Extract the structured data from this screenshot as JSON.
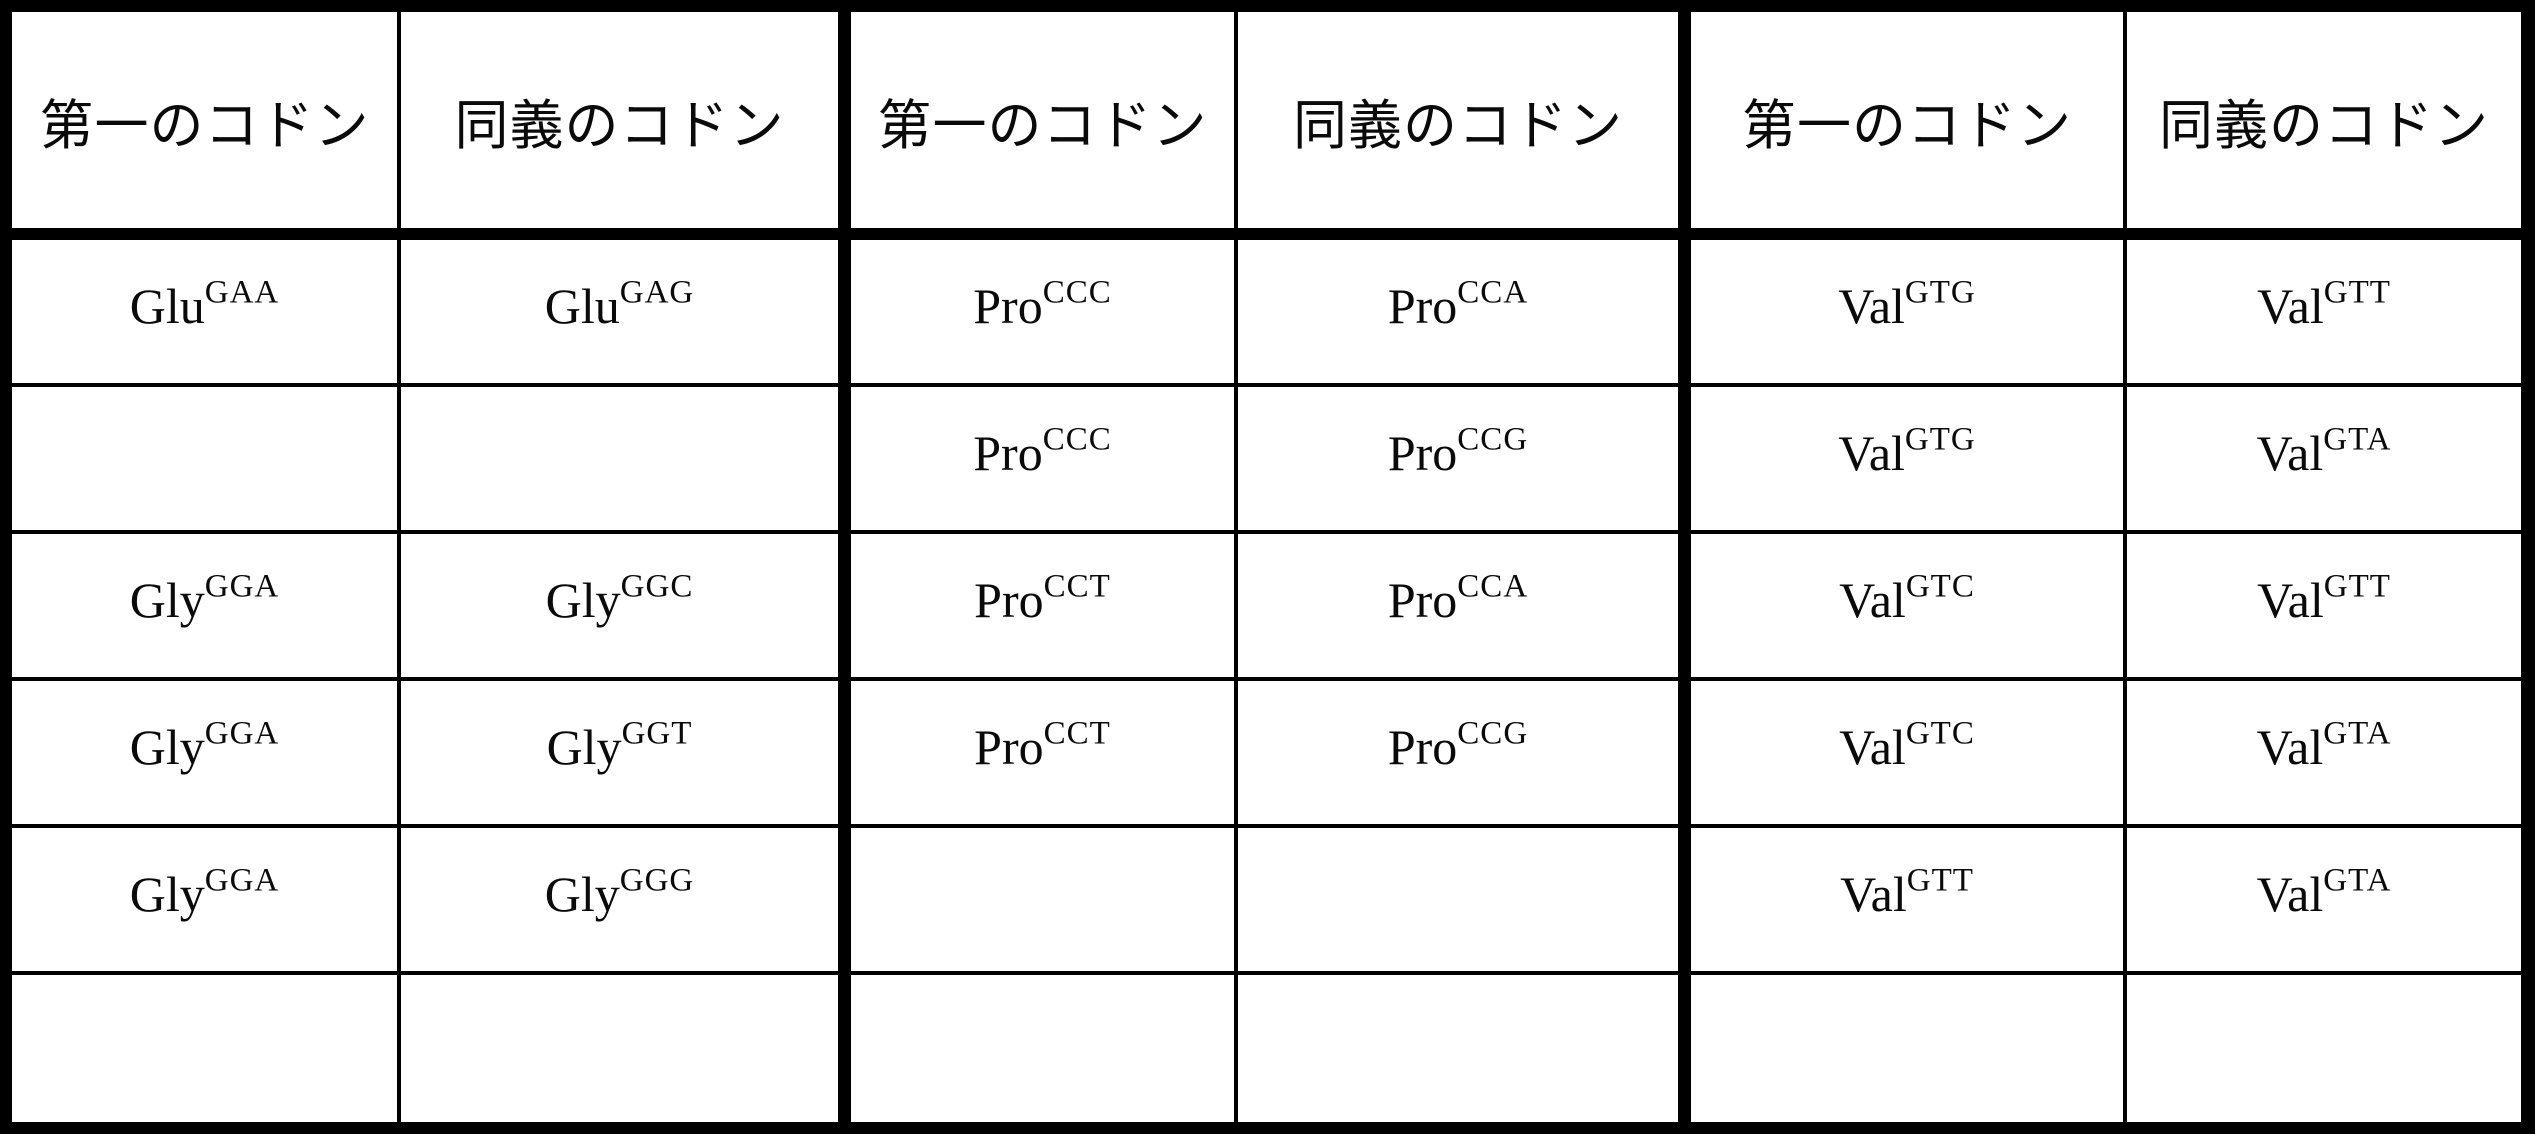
{
  "colors": {
    "ink": "#000000",
    "paper": "#ffffff"
  },
  "table": {
    "description": "synonymous codon substitution table",
    "header": [
      "第一のコドン",
      "同義のコドン",
      "第一のコドン",
      "同義のコドン",
      "第一のコドン",
      "同義のコドン"
    ],
    "rows": [
      [
        {
          "base": "Glu",
          "sup": "GAA"
        },
        {
          "base": "Glu",
          "sup": "GAG"
        },
        {
          "base": "Pro",
          "sup": "CCC"
        },
        {
          "base": "Pro",
          "sup": "CCA"
        },
        {
          "base": "Val",
          "sup": "GTG"
        },
        {
          "base": "Val",
          "sup": "GTT"
        }
      ],
      [
        null,
        null,
        {
          "base": "Pro",
          "sup": "CCC"
        },
        {
          "base": "Pro",
          "sup": "CCG"
        },
        {
          "base": "Val",
          "sup": "GTG"
        },
        {
          "base": "Val",
          "sup": "GTA"
        }
      ],
      [
        {
          "base": "Gly",
          "sup": "GGA"
        },
        {
          "base": "Gly",
          "sup": "GGC"
        },
        {
          "base": "Pro",
          "sup": "CCT"
        },
        {
          "base": "Pro",
          "sup": "CCA"
        },
        {
          "base": "Val",
          "sup": "GTC"
        },
        {
          "base": "Val",
          "sup": "GTT"
        }
      ],
      [
        {
          "base": "Gly",
          "sup": "GGA"
        },
        {
          "base": "Gly",
          "sup": "GGT"
        },
        {
          "base": "Pro",
          "sup": "CCT"
        },
        {
          "base": "Pro",
          "sup": "CCG"
        },
        {
          "base": "Val",
          "sup": "GTC"
        },
        {
          "base": "Val",
          "sup": "GTA"
        }
      ],
      [
        {
          "base": "Gly",
          "sup": "GGA"
        },
        {
          "base": "Gly",
          "sup": "GGG"
        },
        null,
        null,
        {
          "base": "Val",
          "sup": "GTT"
        },
        {
          "base": "Val",
          "sup": "GTA"
        }
      ],
      [
        null,
        null,
        null,
        null,
        null,
        null
      ]
    ]
  }
}
